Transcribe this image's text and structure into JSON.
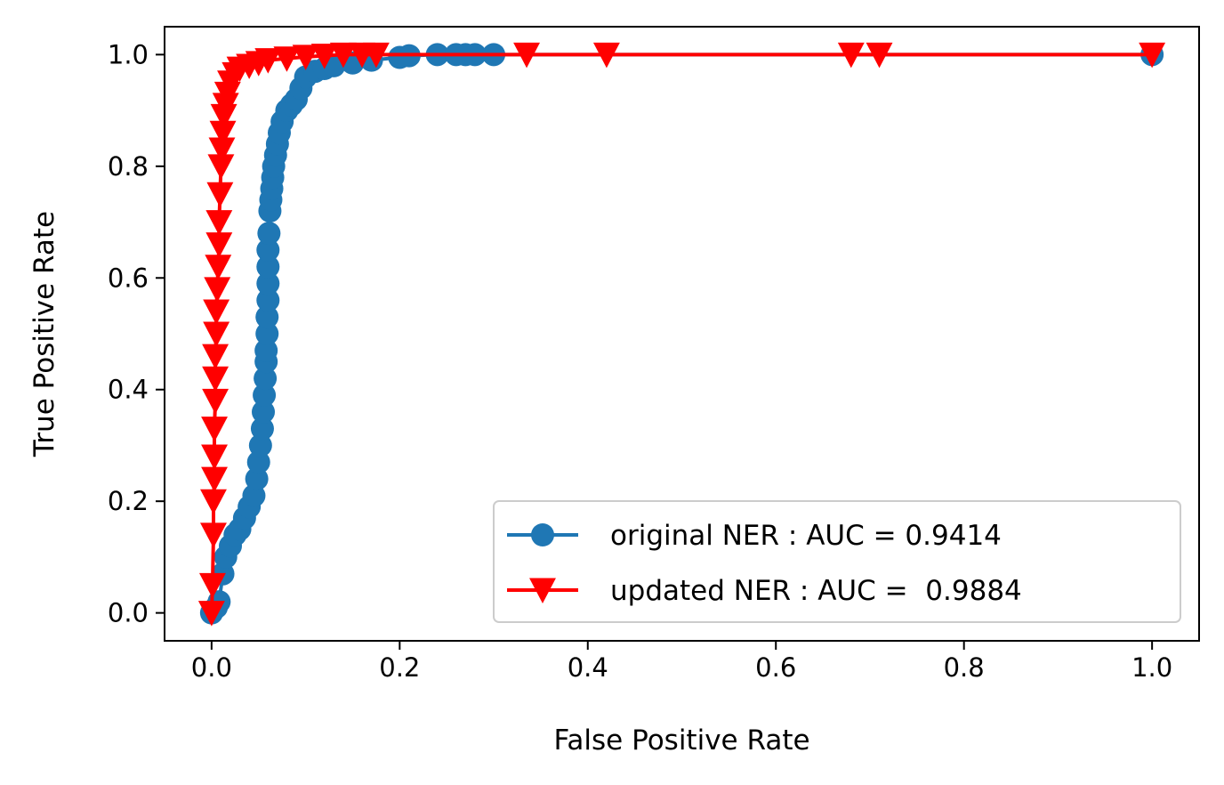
{
  "chart_data": {
    "type": "line",
    "xlabel": "False Positive Rate",
    "ylabel": "True Positive Rate",
    "xlim": [
      -0.05,
      1.05
    ],
    "ylim": [
      -0.05,
      1.05
    ],
    "xticks": [
      "0.0",
      "0.2",
      "0.4",
      "0.6",
      "0.8",
      "1.0"
    ],
    "yticks": [
      "0.0",
      "0.2",
      "0.4",
      "0.6",
      "0.8",
      "1.0"
    ],
    "grid": false,
    "legend_position": "lower-right",
    "series": [
      {
        "name": "original NER : AUC = 0.9414",
        "color": "#1f77b4",
        "marker": "circle",
        "x": [
          0.0,
          0.005,
          0.008,
          0.012,
          0.015,
          0.02,
          0.025,
          0.03,
          0.035,
          0.04,
          0.045,
          0.048,
          0.05,
          0.052,
          0.054,
          0.055,
          0.056,
          0.057,
          0.058,
          0.058,
          0.059,
          0.059,
          0.06,
          0.06,
          0.06,
          0.06,
          0.061,
          0.062,
          0.063,
          0.064,
          0.065,
          0.066,
          0.068,
          0.07,
          0.072,
          0.075,
          0.08,
          0.085,
          0.09,
          0.095,
          0.1,
          0.11,
          0.12,
          0.13,
          0.15,
          0.17,
          0.2,
          0.21,
          0.24,
          0.26,
          0.27,
          0.28,
          0.3,
          1.0
        ],
        "y": [
          0.0,
          0.01,
          0.02,
          0.07,
          0.1,
          0.12,
          0.14,
          0.15,
          0.17,
          0.19,
          0.21,
          0.24,
          0.27,
          0.3,
          0.33,
          0.36,
          0.39,
          0.42,
          0.45,
          0.47,
          0.5,
          0.53,
          0.56,
          0.59,
          0.62,
          0.65,
          0.68,
          0.72,
          0.74,
          0.76,
          0.78,
          0.8,
          0.82,
          0.84,
          0.86,
          0.88,
          0.9,
          0.91,
          0.92,
          0.94,
          0.96,
          0.97,
          0.975,
          0.98,
          0.985,
          0.99,
          0.995,
          0.998,
          1.0,
          1.0,
          1.0,
          1.0,
          1.0,
          1.0
        ]
      },
      {
        "name": "updated NER : AUC =  0.9884",
        "color": "#ff0000",
        "marker": "triangle-down",
        "x": [
          0.0,
          0.001,
          0.002,
          0.002,
          0.003,
          0.003,
          0.003,
          0.004,
          0.004,
          0.004,
          0.005,
          0.005,
          0.006,
          0.007,
          0.008,
          0.008,
          0.009,
          0.01,
          0.011,
          0.012,
          0.013,
          0.015,
          0.017,
          0.02,
          0.025,
          0.03,
          0.04,
          0.05,
          0.06,
          0.08,
          0.1,
          0.12,
          0.14,
          0.16,
          0.175,
          0.335,
          0.42,
          0.68,
          0.71,
          1.0
        ],
        "y": [
          0.0,
          0.05,
          0.14,
          0.2,
          0.24,
          0.28,
          0.33,
          0.38,
          0.42,
          0.46,
          0.5,
          0.54,
          0.58,
          0.62,
          0.66,
          0.7,
          0.75,
          0.8,
          0.83,
          0.86,
          0.89,
          0.91,
          0.93,
          0.95,
          0.965,
          0.975,
          0.98,
          0.985,
          0.99,
          0.993,
          0.996,
          0.998,
          1.0,
          1.0,
          1.0,
          1.0,
          1.0,
          1.0,
          1.0,
          1.0
        ]
      }
    ]
  }
}
